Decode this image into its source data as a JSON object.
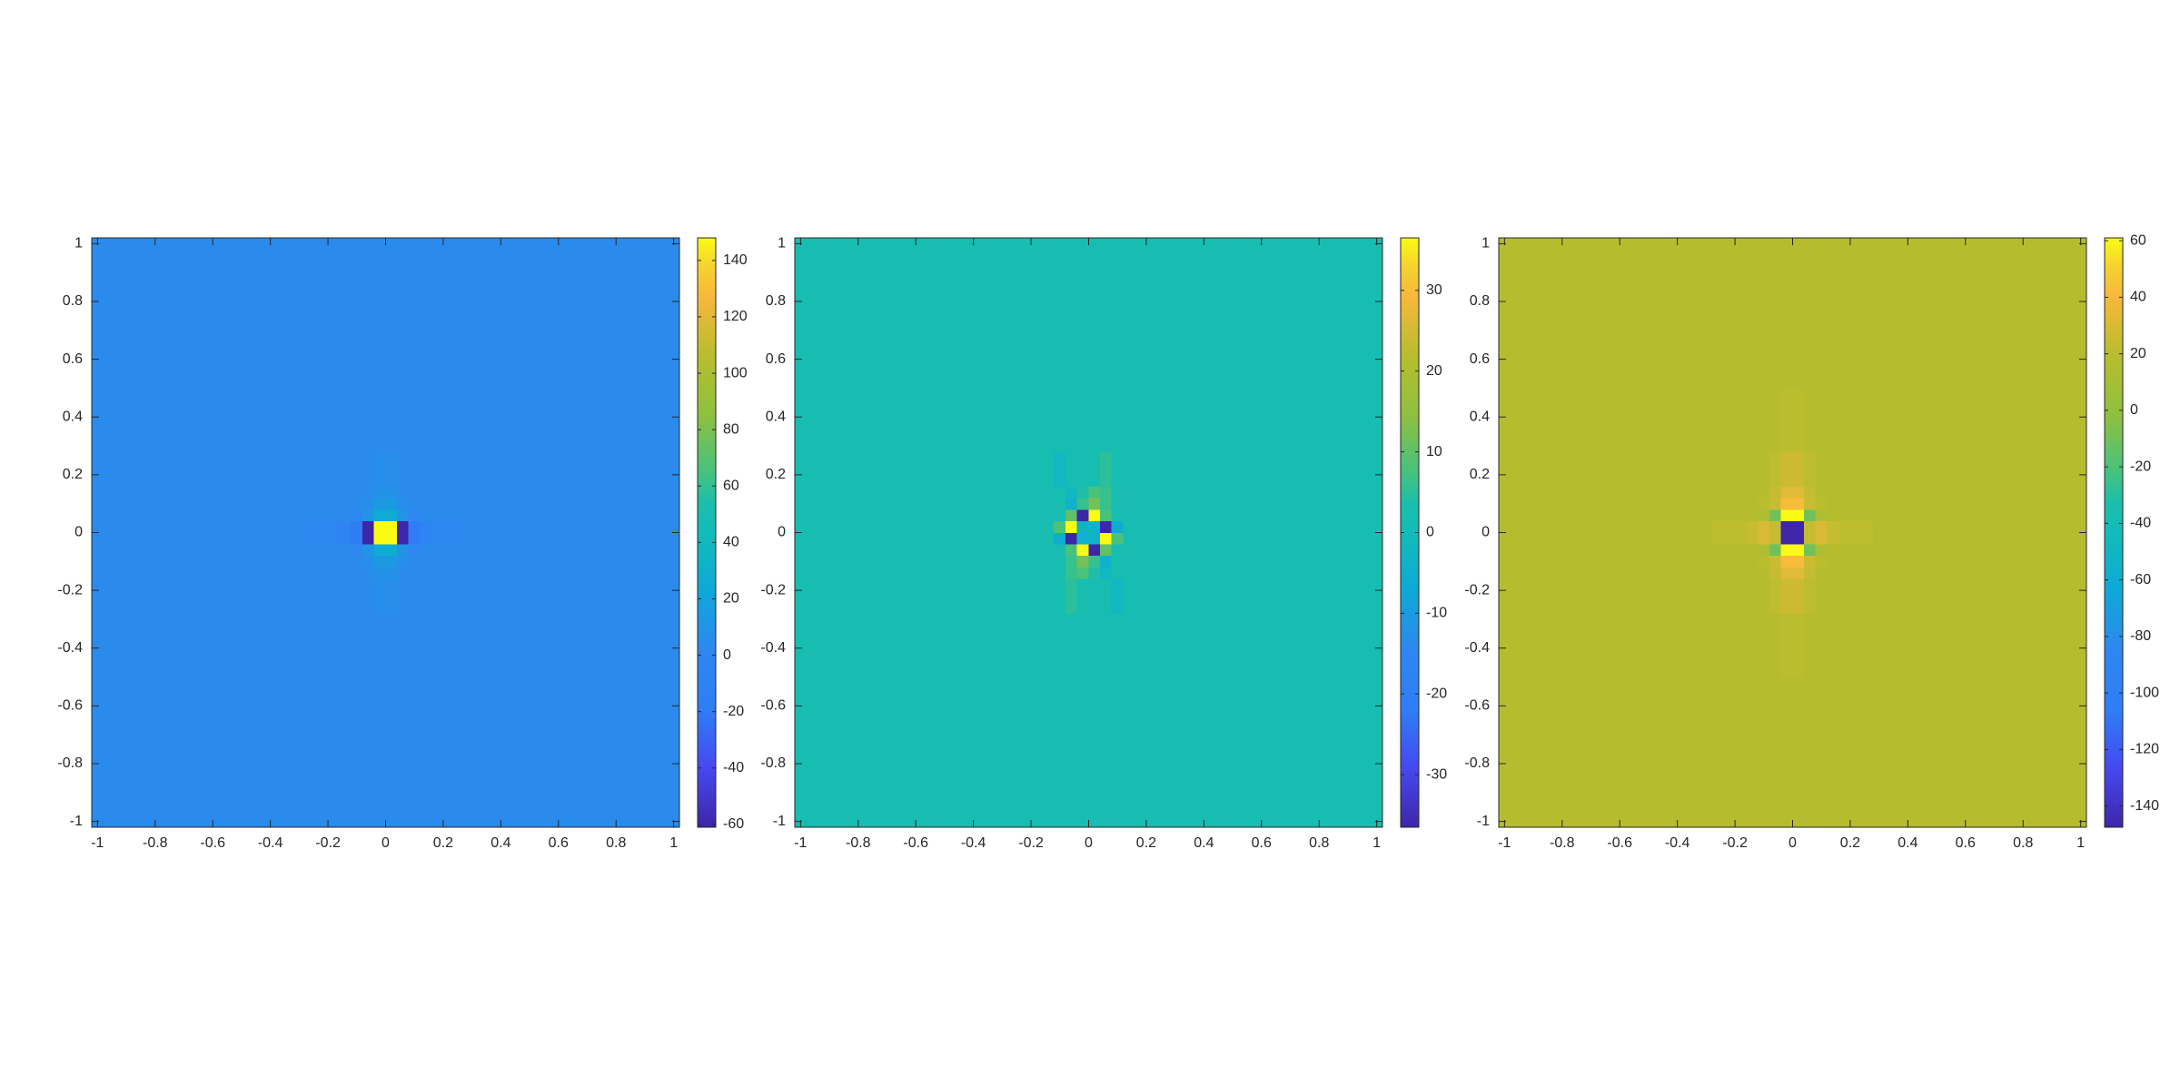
{
  "chart_data": [
    {
      "type": "heatmap",
      "colormap": "parula",
      "x_edges": [
        -1.02,
        -0.5,
        -0.28,
        -0.16,
        -0.12,
        -0.08,
        -0.04,
        0,
        0.04,
        0.08,
        0.12,
        0.16,
        0.28,
        0.5,
        1.02
      ],
      "y_edges": [
        -1.02,
        -0.5,
        -0.28,
        -0.16,
        -0.12,
        -0.08,
        -0.04,
        0,
        0.04,
        0.08,
        0.12,
        0.16,
        0.28,
        0.5,
        1.02
      ],
      "z": [
        [
          4,
          4,
          4,
          4,
          4,
          4,
          4,
          4,
          4,
          4,
          4,
          4,
          4,
          4
        ],
        [
          4,
          4,
          4,
          4,
          4,
          4,
          4,
          4,
          4,
          4,
          4,
          4,
          4,
          4
        ],
        [
          4,
          4,
          4,
          4,
          4,
          4,
          6,
          6,
          4,
          4,
          4,
          4,
          4,
          4
        ],
        [
          4,
          4,
          4,
          4,
          4,
          4,
          8,
          8,
          4,
          4,
          4,
          4,
          4,
          4
        ],
        [
          4,
          4,
          4,
          4,
          4,
          6,
          14,
          14,
          6,
          4,
          4,
          4,
          4,
          4
        ],
        [
          4,
          4,
          4,
          4,
          2,
          10,
          26,
          26,
          10,
          2,
          4,
          4,
          4,
          4
        ],
        [
          4,
          4,
          2,
          -6,
          -20,
          -61,
          148,
          148,
          -61,
          -20,
          -6,
          2,
          4,
          4
        ],
        [
          4,
          4,
          2,
          -6,
          -20,
          -61,
          148,
          148,
          -61,
          -20,
          -6,
          2,
          4,
          4
        ],
        [
          4,
          4,
          4,
          4,
          2,
          10,
          26,
          26,
          10,
          2,
          4,
          4,
          4,
          4
        ],
        [
          4,
          4,
          4,
          4,
          4,
          6,
          14,
          14,
          6,
          4,
          4,
          4,
          4,
          4
        ],
        [
          4,
          4,
          4,
          4,
          4,
          4,
          8,
          8,
          4,
          4,
          4,
          4,
          4,
          4
        ],
        [
          4,
          4,
          4,
          4,
          4,
          4,
          6,
          6,
          4,
          4,
          4,
          4,
          4,
          4
        ],
        [
          4,
          4,
          4,
          4,
          4,
          4,
          4,
          4,
          4,
          4,
          4,
          4,
          4,
          4
        ],
        [
          4,
          4,
          4,
          4,
          4,
          4,
          4,
          4,
          4,
          4,
          4,
          4,
          4,
          4
        ]
      ],
      "xlim": [
        -1.02,
        1.02
      ],
      "ylim": [
        -1.02,
        1.02
      ],
      "xticks": [
        -1,
        -0.8,
        -0.6,
        -0.4,
        -0.2,
        0,
        0.2,
        0.4,
        0.6,
        0.8,
        1
      ],
      "yticks": [
        -1,
        -0.8,
        -0.6,
        -0.4,
        -0.2,
        0,
        0.2,
        0.4,
        0.6,
        0.8,
        1
      ],
      "clim": [
        -61,
        148
      ],
      "cticks": [
        -60,
        -40,
        -20,
        0,
        20,
        40,
        60,
        80,
        100,
        120,
        140
      ]
    },
    {
      "type": "heatmap",
      "colormap": "parula",
      "x_edges": [
        -1.02,
        -0.5,
        -0.28,
        -0.16,
        -0.12,
        -0.08,
        -0.04,
        0,
        0.04,
        0.08,
        0.12,
        0.16,
        0.28,
        0.5,
        1.02
      ],
      "y_edges": [
        -1.02,
        -0.5,
        -0.28,
        -0.16,
        -0.12,
        -0.08,
        -0.04,
        0,
        0.04,
        0.08,
        0.12,
        0.16,
        0.28,
        0.5,
        1.02
      ],
      "z": [
        [
          2,
          2,
          2,
          2,
          2,
          2,
          2,
          2,
          2,
          2,
          2,
          2,
          2,
          2
        ],
        [
          2,
          2,
          2,
          2,
          2,
          2,
          2,
          2,
          2,
          2,
          2,
          2,
          2,
          2
        ],
        [
          2,
          2,
          2,
          2,
          2,
          5,
          2,
          2,
          2,
          -2,
          2,
          2,
          2,
          2
        ],
        [
          2,
          2,
          2,
          2,
          2,
          6,
          8,
          4,
          -2,
          2,
          2,
          2,
          2,
          2
        ],
        [
          2,
          2,
          2,
          2,
          2,
          6,
          12,
          6,
          -4,
          2,
          2,
          2,
          2,
          2
        ],
        [
          2,
          2,
          2,
          2,
          2,
          8,
          36.5,
          -36.5,
          10,
          2,
          2,
          2,
          2,
          2
        ],
        [
          2,
          2,
          2,
          2,
          -6,
          -36.5,
          -4,
          -4,
          36.5,
          8,
          2,
          2,
          2,
          2
        ],
        [
          2,
          2,
          2,
          2,
          8,
          36.5,
          -4,
          -4,
          -36.5,
          -6,
          2,
          2,
          2,
          2
        ],
        [
          2,
          2,
          2,
          2,
          2,
          10,
          -36.5,
          36.5,
          8,
          2,
          2,
          2,
          2,
          2
        ],
        [
          2,
          2,
          2,
          2,
          2,
          -4,
          6,
          12,
          6,
          2,
          2,
          2,
          2,
          2
        ],
        [
          2,
          2,
          2,
          2,
          2,
          -2,
          4,
          8,
          6,
          2,
          2,
          2,
          2,
          2
        ],
        [
          2,
          2,
          2,
          2,
          -2,
          2,
          2,
          2,
          5,
          2,
          2,
          2,
          2,
          2
        ],
        [
          2,
          2,
          2,
          2,
          2,
          2,
          2,
          2,
          2,
          2,
          2,
          2,
          2,
          2
        ],
        [
          2,
          2,
          2,
          2,
          2,
          2,
          2,
          2,
          2,
          2,
          2,
          2,
          2,
          2
        ]
      ],
      "xlim": [
        -1.02,
        1.02
      ],
      "ylim": [
        -1.02,
        1.02
      ],
      "xticks": [
        -1,
        -0.8,
        -0.6,
        -0.4,
        -0.2,
        0,
        0.2,
        0.4,
        0.6,
        0.8,
        1
      ],
      "yticks": [
        -1,
        -0.8,
        -0.6,
        -0.4,
        -0.2,
        0,
        0.2,
        0.4,
        0.6,
        0.8,
        1
      ],
      "clim": [
        -36.5,
        36.5
      ],
      "cticks": [
        -30,
        -20,
        -10,
        0,
        10,
        20,
        30
      ]
    },
    {
      "type": "heatmap",
      "colormap": "parula",
      "x_edges": [
        -1.02,
        -0.5,
        -0.28,
        -0.16,
        -0.12,
        -0.08,
        -0.04,
        0,
        0.04,
        0.08,
        0.12,
        0.16,
        0.28,
        0.5,
        1.02
      ],
      "y_edges": [
        -1.02,
        -0.5,
        -0.28,
        -0.16,
        -0.12,
        -0.08,
        -0.04,
        0,
        0.04,
        0.08,
        0.12,
        0.16,
        0.28,
        0.5,
        1.02
      ],
      "z": [
        [
          18,
          18,
          18,
          18,
          18,
          18,
          18,
          18,
          18,
          18,
          18,
          18,
          18,
          18
        ],
        [
          18,
          18,
          18,
          18,
          18,
          18,
          20,
          20,
          18,
          18,
          18,
          18,
          18,
          18
        ],
        [
          18,
          18,
          18,
          18,
          18,
          21,
          26,
          26,
          21,
          18,
          18,
          18,
          18,
          18
        ],
        [
          18,
          18,
          18,
          18,
          18,
          24,
          33,
          33,
          24,
          18,
          18,
          18,
          18,
          18
        ],
        [
          18,
          18,
          18,
          18,
          20,
          25,
          42,
          42,
          25,
          20,
          18,
          18,
          18,
          18
        ],
        [
          18,
          18,
          18,
          18,
          14,
          -10,
          61,
          61,
          -10,
          14,
          18,
          18,
          18,
          18
        ],
        [
          18,
          18,
          21,
          24,
          30,
          24,
          -147.5,
          -147.5,
          24,
          30,
          24,
          21,
          18,
          18
        ],
        [
          18,
          18,
          21,
          24,
          30,
          24,
          -147.5,
          -147.5,
          24,
          30,
          24,
          21,
          18,
          18
        ],
        [
          18,
          18,
          18,
          18,
          14,
          -10,
          61,
          61,
          -10,
          14,
          18,
          18,
          18,
          18
        ],
        [
          18,
          18,
          18,
          18,
          20,
          25,
          42,
          42,
          25,
          20,
          18,
          18,
          18,
          18
        ],
        [
          18,
          18,
          18,
          18,
          18,
          24,
          33,
          33,
          24,
          18,
          18,
          18,
          18,
          18
        ],
        [
          18,
          18,
          18,
          18,
          18,
          21,
          26,
          26,
          21,
          18,
          18,
          18,
          18,
          18
        ],
        [
          18,
          18,
          18,
          18,
          18,
          18,
          20,
          20,
          18,
          18,
          18,
          18,
          18,
          18
        ],
        [
          18,
          18,
          18,
          18,
          18,
          18,
          18,
          18,
          18,
          18,
          18,
          18,
          18,
          18
        ]
      ],
      "xlim": [
        -1.02,
        1.02
      ],
      "ylim": [
        -1.02,
        1.02
      ],
      "xticks": [
        -1,
        -0.8,
        -0.6,
        -0.4,
        -0.2,
        0,
        0.2,
        0.4,
        0.6,
        0.8,
        1
      ],
      "yticks": [
        -1,
        -0.8,
        -0.6,
        -0.4,
        -0.2,
        0,
        0.2,
        0.4,
        0.6,
        0.8,
        1
      ],
      "clim": [
        -147.5,
        61
      ],
      "cticks": [
        -140,
        -120,
        -100,
        -80,
        -60,
        -40,
        -20,
        0,
        20,
        40,
        60
      ]
    }
  ]
}
